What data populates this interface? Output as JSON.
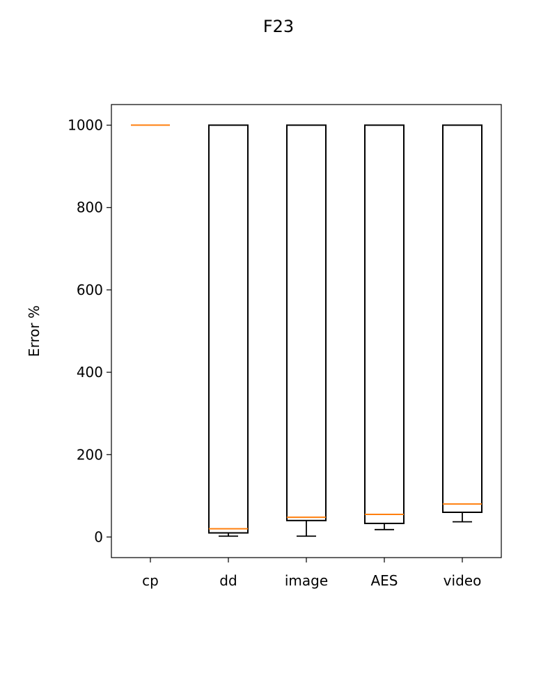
{
  "chart_data": {
    "type": "box",
    "title": "F23",
    "xlabel": "",
    "ylabel": "Error %",
    "ylim": [
      -50,
      1050
    ],
    "yticks": [
      0,
      200,
      400,
      600,
      800,
      1000
    ],
    "categories": [
      "cp",
      "dd",
      "image",
      "AES",
      "video"
    ],
    "boxes": [
      {
        "whislo": 1000,
        "q1": 1000,
        "med": 1000,
        "q3": 1000,
        "whishi": 1000
      },
      {
        "whislo": 2,
        "q1": 10,
        "med": 20,
        "q3": 1000,
        "whishi": 1000
      },
      {
        "whislo": 2,
        "q1": 40,
        "med": 48,
        "q3": 1000,
        "whishi": 1000
      },
      {
        "whislo": 18,
        "q1": 33,
        "med": 55,
        "q3": 1000,
        "whishi": 1000
      },
      {
        "whislo": 37,
        "q1": 60,
        "med": 80,
        "q3": 1000,
        "whishi": 1000
      }
    ],
    "colors": {
      "box": "#000000",
      "median": "#ff7f0e"
    },
    "grid": false,
    "legend": "none"
  }
}
